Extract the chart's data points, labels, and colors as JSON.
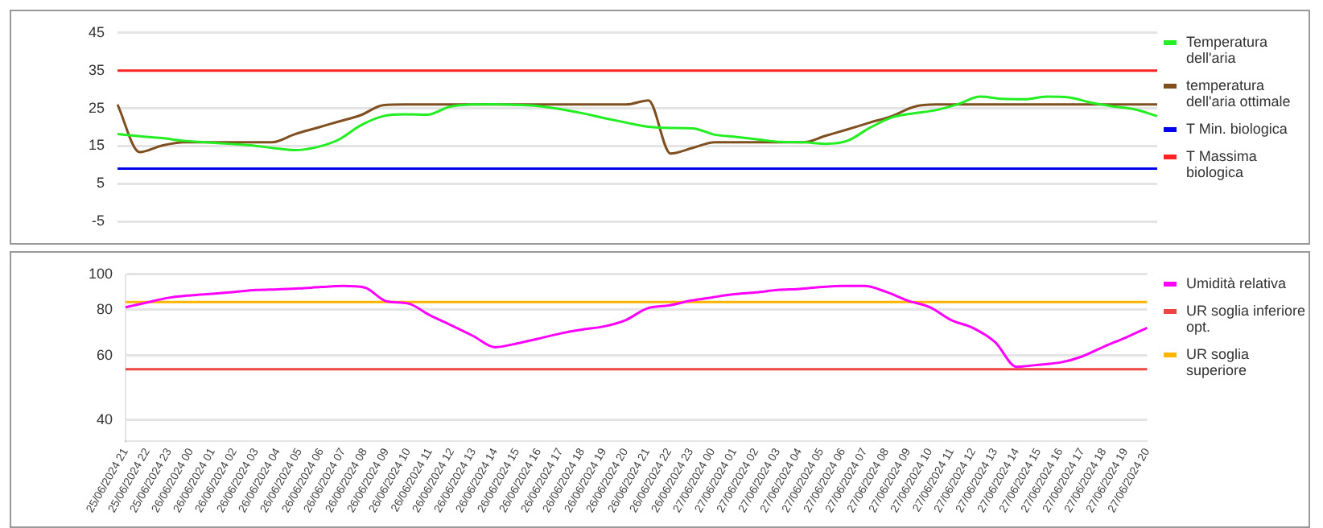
{
  "chart_data": [
    {
      "type": "line",
      "categories": [
        null,
        null,
        null,
        null,
        null,
        null,
        null,
        null,
        null,
        null,
        null,
        null,
        null,
        null,
        null,
        null,
        null,
        null,
        null,
        null,
        null,
        null,
        null,
        null,
        null,
        null,
        null,
        null,
        null,
        null,
        null,
        null,
        null,
        null,
        null,
        null,
        null,
        null,
        null,
        null,
        null,
        null,
        null,
        null,
        null,
        null,
        null,
        null
      ],
      "series": [
        {
          "name": "Temperatura dell'aria",
          "color": "#22ee22",
          "values": [
            18.2,
            17.6,
            17.1,
            16.4,
            16.0,
            15.6,
            15.2,
            14.5,
            13.9,
            14.7,
            16.7,
            20.5,
            22.9,
            23.4,
            23.3,
            25.4,
            26.0,
            26.1,
            25.9,
            25.6,
            24.8,
            23.7,
            22.4,
            21.2,
            20.1,
            19.8,
            19.7,
            18.0,
            17.4,
            16.7,
            16.1,
            16.0,
            15.6,
            16.4,
            19.8,
            22.6,
            23.7,
            24.5,
            26.1,
            28.1,
            27.5,
            27.4,
            28.1,
            27.9,
            26.5,
            25.5,
            24.7,
            22.9
          ]
        },
        {
          "name": "temperatura dell'aria ottimale",
          "color": "#7f4f1f",
          "values": [
            26,
            13.4,
            15.1,
            16,
            16,
            16,
            16,
            16,
            18.1,
            19.8,
            21.5,
            23.2,
            25.8,
            26,
            26,
            26,
            26,
            26,
            26,
            26,
            26,
            26,
            26,
            26,
            27.1,
            13,
            14.5,
            16,
            16,
            16,
            16,
            16,
            17.7,
            19.4,
            21.2,
            22.9,
            25.4,
            26,
            26,
            26,
            26,
            26,
            26,
            26,
            26,
            26,
            26,
            26
          ]
        },
        {
          "name": "T Min. biologica",
          "color": "#0000ee",
          "values": [
            9,
            9,
            9,
            9,
            9,
            9,
            9,
            9,
            9,
            9,
            9,
            9,
            9,
            9,
            9,
            9,
            9,
            9,
            9,
            9,
            9,
            9,
            9,
            9,
            9,
            9,
            9,
            9,
            9,
            9,
            9,
            9,
            9,
            9,
            9,
            9,
            9,
            9,
            9,
            9,
            9,
            9,
            9,
            9,
            9,
            9,
            9,
            9
          ]
        },
        {
          "name": "T Massima biologica",
          "color": "#ff2222",
          "values": [
            35,
            35,
            35,
            35,
            35,
            35,
            35,
            35,
            35,
            35,
            35,
            35,
            35,
            35,
            35,
            35,
            35,
            35,
            35,
            35,
            35,
            35,
            35,
            35,
            35,
            35,
            35,
            35,
            35,
            35,
            35,
            35,
            35,
            35,
            35,
            35,
            35,
            35,
            35,
            35,
            35,
            35,
            35,
            35,
            35,
            35,
            35,
            35
          ]
        }
      ],
      "ylim": [
        -5,
        45
      ],
      "yticks": [
        -5,
        5,
        15,
        25,
        35,
        45
      ],
      "grid": "y",
      "legend": "right",
      "tick_labels": "y"
    },
    {
      "type": "line",
      "categories": [
        "25/06/2024 21",
        "25/06/2024 22",
        "25/06/2024 23",
        "26/06/2024 00",
        "26/06/2024 01",
        "26/06/2024 02",
        "26/06/2024 03",
        "26/06/2024 04",
        "26/06/2024 05",
        "26/06/2024 06",
        "26/06/2024 07",
        "26/06/2024 08",
        "26/06/2024 09",
        "26/06/2024 10",
        "26/06/2024 11",
        "26/06/2024 12",
        "26/06/2024 13",
        "26/06/2024 14",
        "26/06/2024 15",
        "26/06/2024 16",
        "26/06/2024 17",
        "26/06/2024 18",
        "26/06/2024 19",
        "26/06/2024 20",
        "26/06/2024 21",
        "26/06/2024 22",
        "26/06/2024 23",
        "27/06/2024 00",
        "27/06/2024 01",
        "27/06/2024 02",
        "27/06/2024 03",
        "27/06/2024 04",
        "27/06/2024 05",
        "27/06/2024 06",
        "27/06/2024 07",
        "27/06/2024 08",
        "27/06/2024 09",
        "27/06/2024 10",
        "27/06/2024 11",
        "27/06/2024 12",
        "27/06/2024 13",
        "27/06/2024 14",
        "27/06/2024 15",
        "27/06/2024 16",
        "27/06/2024 17",
        "27/06/2024 18",
        "27/06/2024 19",
        "27/06/2024 20"
      ],
      "series": [
        {
          "name": "Umidità relativa",
          "color": "#ff00ff",
          "values": [
            81.3,
            83.8,
            86.3,
            87.6,
            88.5,
            89.5,
            90.6,
            91,
            91.5,
            92.3,
            92.9,
            92,
            84.4,
            83.2,
            77.3,
            72.5,
            67.8,
            63.2,
            64.7,
            66.7,
            68.9,
            70.6,
            72,
            74.9,
            80.7,
            82.2,
            84.7,
            86.5,
            88.2,
            89.2,
            90.6,
            91.2,
            92.3,
            92.9,
            92.9,
            89.5,
            84.7,
            81.3,
            74.9,
            71.3,
            65.3,
            55.9,
            56.6,
            57.4,
            59.6,
            63.4,
            67.1,
            71.4
          ]
        },
        {
          "name": "UR soglia inferiore opt.",
          "color": "#ee4444",
          "values": [
            55,
            55,
            55,
            55,
            55,
            55,
            55,
            55,
            55,
            55,
            55,
            55,
            55,
            55,
            55,
            55,
            55,
            55,
            55,
            55,
            55,
            55,
            55,
            55,
            55,
            55,
            55,
            55,
            55,
            55,
            55,
            55,
            55,
            55,
            55,
            55,
            55,
            55,
            55,
            55,
            55,
            55,
            55,
            55,
            55,
            55,
            55,
            55
          ]
        },
        {
          "name": "UR soglia superiore",
          "color": "#ffb400",
          "values": [
            84,
            84,
            84,
            84,
            84,
            84,
            84,
            84,
            84,
            84,
            84,
            84,
            84,
            84,
            84,
            84,
            84,
            84,
            84,
            84,
            84,
            84,
            84,
            84,
            84,
            84,
            84,
            84,
            84,
            84,
            84,
            84,
            84,
            84,
            84,
            84,
            84,
            84,
            84,
            84,
            84,
            84,
            84,
            84,
            84,
            84,
            84,
            84
          ]
        }
      ],
      "ylim": [
        35,
        100
      ],
      "yticks": [
        40,
        60,
        80,
        100
      ],
      "log": "y",
      "grid": "y",
      "legend": "right"
    }
  ]
}
